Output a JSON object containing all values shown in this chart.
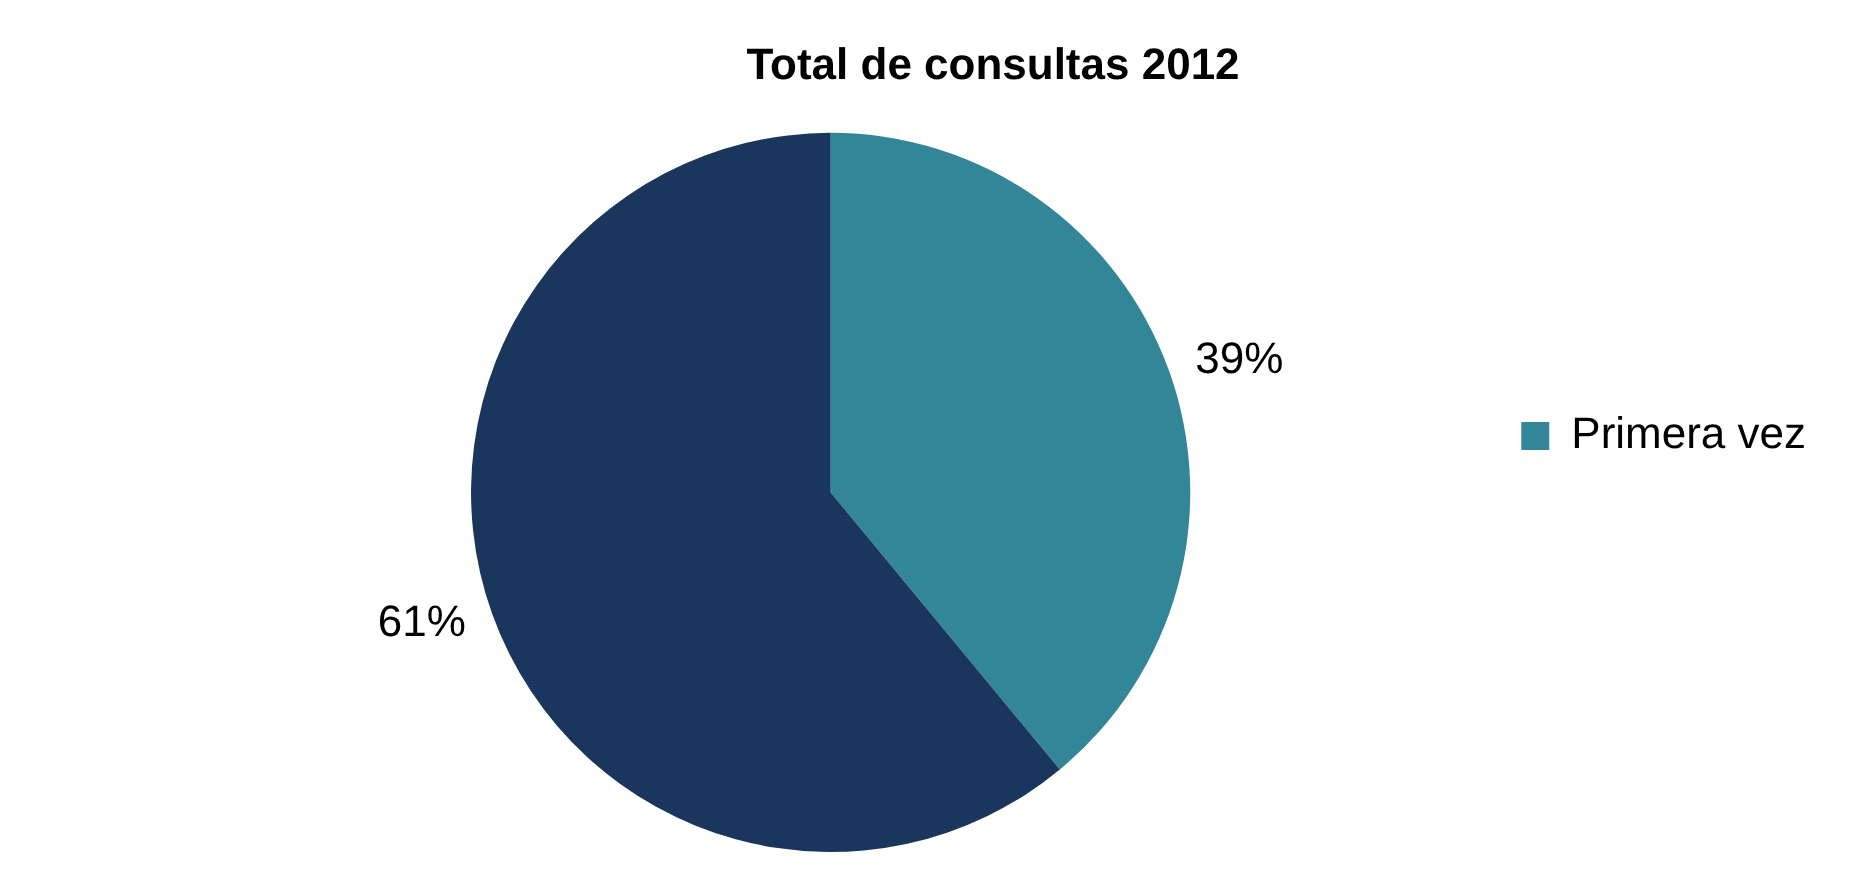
{
  "chart_data": {
    "type": "pie",
    "title": "Total de consultas 2012",
    "categories": [
      "Primera vez",
      null
    ],
    "values": [
      39,
      61
    ],
    "colors": [
      "#338598",
      "#1a365c"
    ],
    "value_labels": [
      "39%",
      "61%"
    ],
    "legend": "right"
  }
}
